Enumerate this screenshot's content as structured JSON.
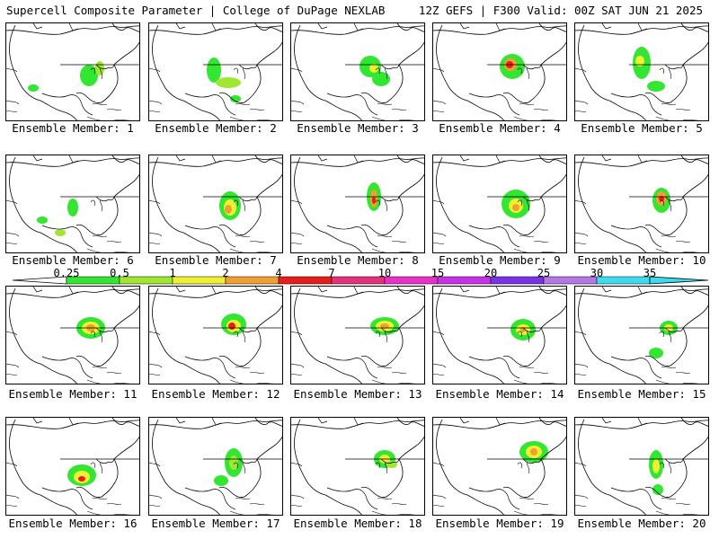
{
  "header": {
    "title": "Supercell Composite Parameter | College of DuPage NEXLAB",
    "run_info": "12Z GEFS | F300 Valid: 00Z SAT JUN 21 2025"
  },
  "members": [
    {
      "label": "Ensemble Member: 1"
    },
    {
      "label": "Ensemble Member: 2"
    },
    {
      "label": "Ensemble Member: 3"
    },
    {
      "label": "Ensemble Member: 4"
    },
    {
      "label": "Ensemble Member: 5"
    },
    {
      "label": "Ensemble Member: 6"
    },
    {
      "label": "Ensemble Member: 7"
    },
    {
      "label": "Ensemble Member: 8"
    },
    {
      "label": "Ensemble Member: 9"
    },
    {
      "label": "Ensemble Member: 10"
    },
    {
      "label": "Ensemble Member: 11"
    },
    {
      "label": "Ensemble Member: 12"
    },
    {
      "label": "Ensemble Member: 13"
    },
    {
      "label": "Ensemble Member: 14"
    },
    {
      "label": "Ensemble Member: 15"
    },
    {
      "label": "Ensemble Member: 16"
    },
    {
      "label": "Ensemble Member: 17"
    },
    {
      "label": "Ensemble Member: 18"
    },
    {
      "label": "Ensemble Member: 19"
    },
    {
      "label": "Ensemble Member: 20"
    }
  ],
  "legend": {
    "ticks": [
      "0.25",
      "0.5",
      "1",
      "2",
      "4",
      "7",
      "10",
      "15",
      "20",
      "25",
      "30",
      "35"
    ],
    "colors": [
      "#d0d0d0",
      "#32e632",
      "#a0e632",
      "#f0f032",
      "#f0a032",
      "#e61e1e",
      "#e6327a",
      "#e632c8",
      "#c832e6",
      "#7a32e6",
      "#b478e6",
      "#3cdcf0"
    ]
  }
}
